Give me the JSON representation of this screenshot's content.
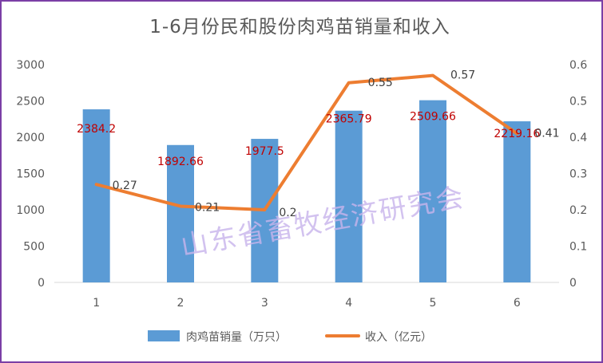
{
  "chart_data": {
    "type": "bar+line",
    "title": "1-6月份民和股份肉鸡苗销量和收入",
    "categories": [
      "1",
      "2",
      "3",
      "4",
      "5",
      "6"
    ],
    "left_axis": {
      "ylim": [
        0,
        3000
      ],
      "ticks": [
        "0",
        "500",
        "1000",
        "1500",
        "2000",
        "2500",
        "3000"
      ]
    },
    "right_axis": {
      "ylim": [
        0,
        0.6
      ],
      "ticks": [
        "0",
        "0.1",
        "0.2",
        "0.3",
        "0.4",
        "0.5",
        "0.6"
      ]
    },
    "series": [
      {
        "name": "肉鸡苗销量（万只）",
        "type": "bar",
        "axis": "left",
        "color": "#5b9bd5",
        "values": [
          2384.2,
          1892.66,
          1977.5,
          2365.79,
          2509.66,
          2219.16
        ],
        "labels": [
          "2384.2",
          "1892.66",
          "1977.5",
          "2365.79",
          "2509.66",
          "2219.16"
        ],
        "label_color": "#c00000"
      },
      {
        "name": "收入（亿元）",
        "type": "line",
        "axis": "right",
        "color": "#ed7d31",
        "values": [
          0.27,
          0.21,
          0.2,
          0.55,
          0.57,
          0.41
        ],
        "labels": [
          "0.27",
          "0.21",
          "0.2",
          "0.55",
          "0.57",
          "0.41"
        ],
        "label_color": "#404040"
      }
    ],
    "legend": "bottom",
    "grid": false
  },
  "watermark": "山东省畜牧经济研究会"
}
